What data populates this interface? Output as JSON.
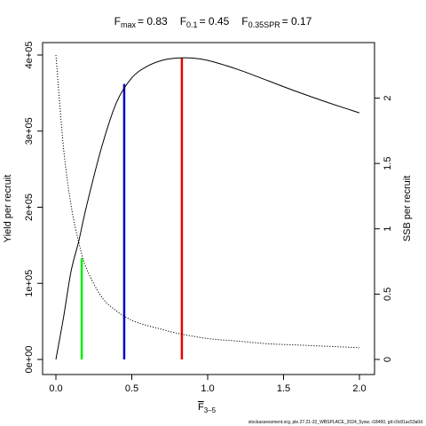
{
  "chart_data": {
    "type": "line",
    "title_parts": [
      {
        "main": "F",
        "sub": "max",
        "value": "= 0.83"
      },
      {
        "main": "F",
        "sub": "0.1",
        "value": "= 0.45"
      },
      {
        "main": "F",
        "sub": "0.35SPR",
        "value": "= 0.17"
      }
    ],
    "xlabel_main": "F",
    "xlabel_sub": "3–5",
    "ylabel_left": "Yield per recruit",
    "ylabel_right": "SSB per recruit",
    "xlim": [
      0,
      2
    ],
    "ylim_left": [
      0,
      400000
    ],
    "ylim_right": [
      0,
      2.33
    ],
    "x_ticks": [
      {
        "value": 0,
        "label": "0.0"
      },
      {
        "value": 0.5,
        "label": "0.5"
      },
      {
        "value": 1.0,
        "label": "1.0"
      },
      {
        "value": 1.5,
        "label": "1.5"
      },
      {
        "value": 2.0,
        "label": "2.0"
      }
    ],
    "y_left_ticks": [
      {
        "value": 0,
        "label": "0e+00"
      },
      {
        "value": 100000,
        "label": "1e+05"
      },
      {
        "value": 200000,
        "label": "2e+05"
      },
      {
        "value": 300000,
        "label": "3e+05"
      },
      {
        "value": 400000,
        "label": "4e+05"
      }
    ],
    "y_right_ticks": [
      {
        "value": 0,
        "label": "0"
      },
      {
        "value": 0.5,
        "label": "0.5"
      },
      {
        "value": 1,
        "label": "1"
      },
      {
        "value": 1.5,
        "label": "1.5"
      },
      {
        "value": 2,
        "label": "2"
      }
    ],
    "series": [
      {
        "style": "solid",
        "axis": "left",
        "x": [
          0,
          0.05,
          0.1,
          0.15,
          0.2,
          0.3,
          0.4,
          0.5,
          0.6,
          0.7,
          0.8,
          0.9,
          1.0,
          1.2,
          1.4,
          1.6,
          1.8,
          2.0
        ],
        "y": [
          0,
          55000,
          116000,
          155000,
          200000,
          278000,
          338000,
          370000,
          385000,
          393000,
          396000,
          396000,
          393000,
          381000,
          366000,
          351000,
          337000,
          324000
        ]
      },
      {
        "style": "dotted",
        "axis": "right",
        "x": [
          0,
          0.05,
          0.1,
          0.15,
          0.2,
          0.3,
          0.4,
          0.5,
          0.6,
          0.7,
          0.8,
          1.0,
          1.2,
          1.4,
          1.6,
          1.8,
          2.0
        ],
        "y": [
          2.33,
          1.62,
          1.18,
          0.9,
          0.7,
          0.48,
          0.37,
          0.3,
          0.26,
          0.23,
          0.2,
          0.16,
          0.14,
          0.12,
          0.11,
          0.1,
          0.09
        ]
      }
    ],
    "reference_lines": [
      {
        "x": 0.17,
        "y_top": 133000,
        "color": "#00ee00"
      },
      {
        "x": 0.45,
        "y_top": 362000,
        "color": "#0000cc"
      },
      {
        "x": 0.83,
        "y_top": 396000,
        "color": "#ee0000"
      }
    ]
  },
  "footer": "stockassessment.org, ple.27.21-32_WBSPLACE_2024_5ysw, r18460, git:c9c81ac53a0d"
}
